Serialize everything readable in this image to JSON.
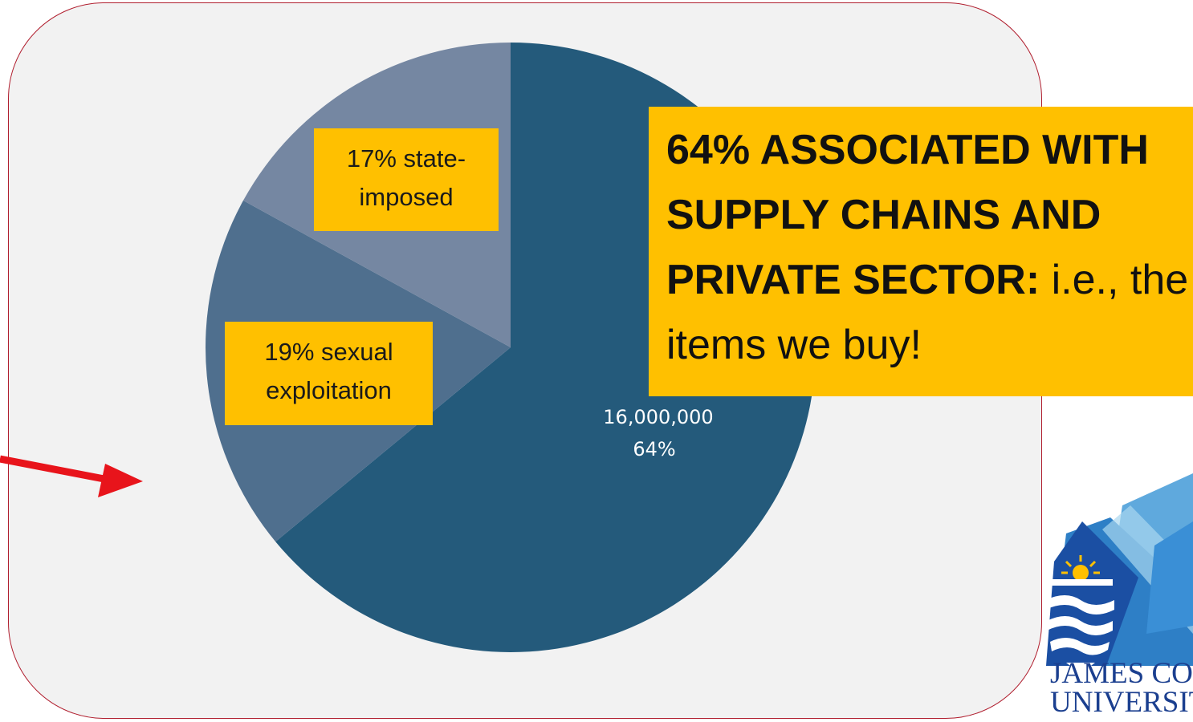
{
  "chart_data": {
    "type": "pie",
    "slices": [
      {
        "label": "16,000,000",
        "value": 64,
        "pct_label": "64%",
        "color": "#245a7b"
      },
      {
        "label": "19% sexual exploitation",
        "value": 19,
        "color": "#4f6f8e"
      },
      {
        "label": "17% state-imposed",
        "value": 17,
        "color": "#7587a2"
      }
    ],
    "start_angle_deg": 0,
    "direction": "clockwise"
  },
  "labels": {
    "state_line1": "17% state-",
    "state_line2": "imposed",
    "sexual_line1": "19% sexual",
    "sexual_line2": "exploitation",
    "center_value": "16,000,000",
    "center_pct": "64%"
  },
  "callout": {
    "bold_text": "64% ASSOCIATED WITH SUPPLY CHAINS AND PRIVATE SECTOR:",
    "normal_text": " i.e., the items we buy!"
  },
  "logo": {
    "line1": "JAMES COOK",
    "line2": "UNIVERSITY"
  },
  "colors": {
    "panel_bg": "#f2f2f2",
    "panel_border": "#b01e2e",
    "highlight": "#ffc000",
    "arrow": "#e8141b",
    "logo_blue": "#1b3f8f"
  }
}
